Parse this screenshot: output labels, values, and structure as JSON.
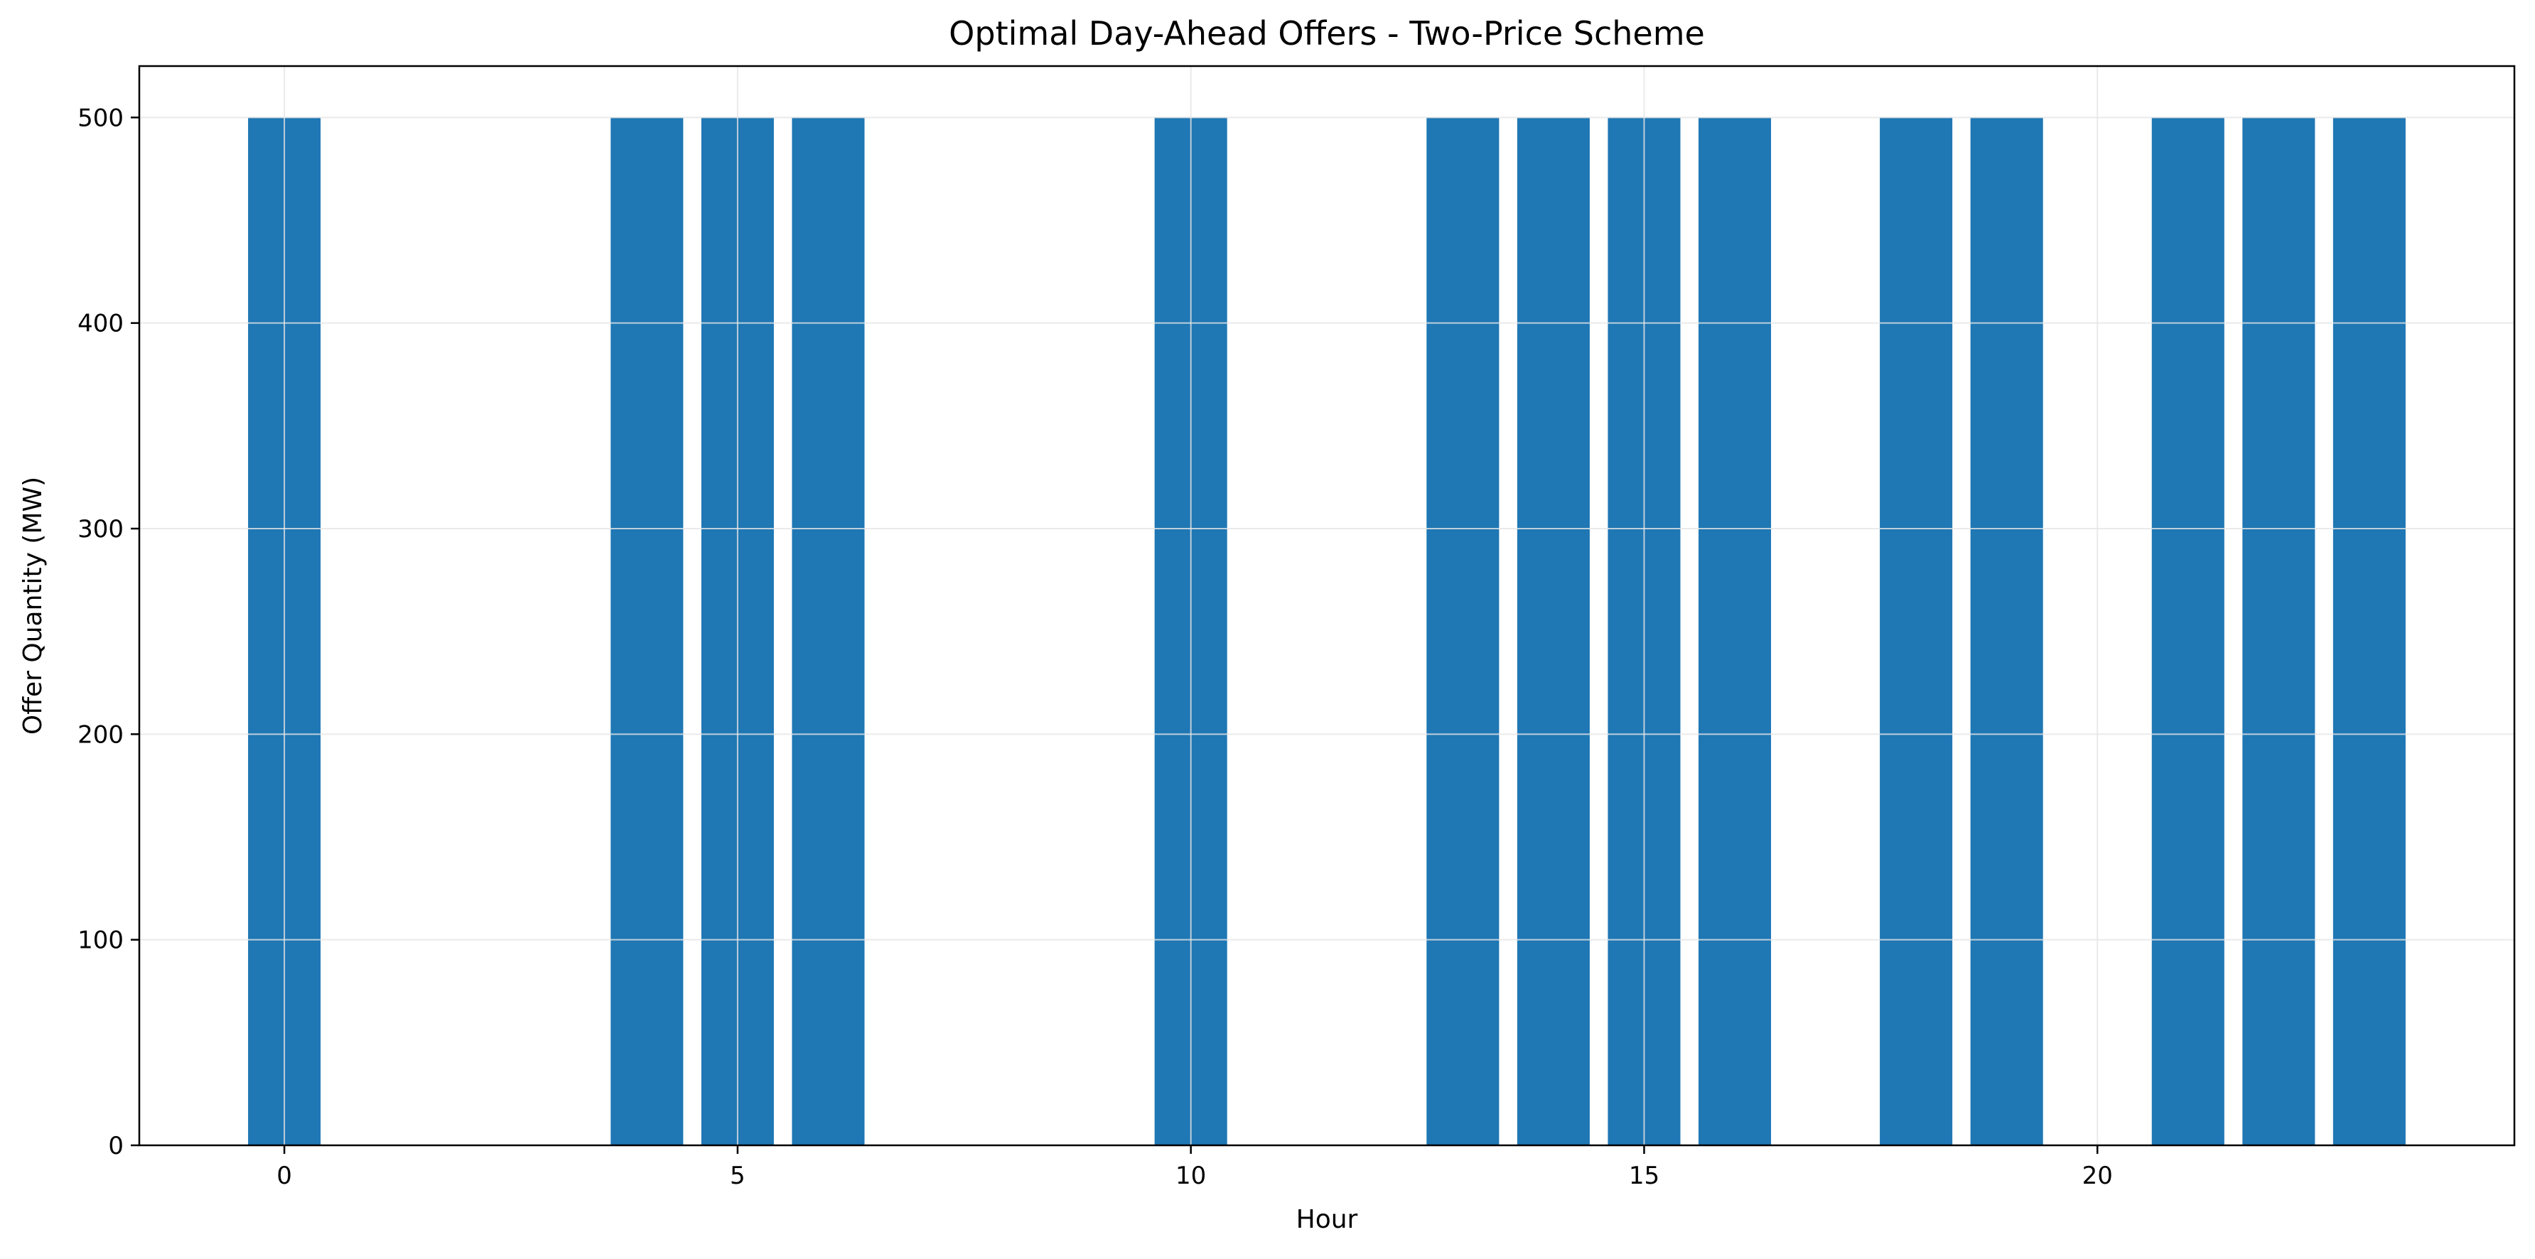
{
  "chart_data": {
    "type": "bar",
    "title": "Optimal Day-Ahead Offers - Two-Price Scheme",
    "xlabel": "Hour",
    "ylabel": "Offer Quantity (MW)",
    "x": [
      0,
      1,
      2,
      3,
      4,
      5,
      6,
      7,
      8,
      9,
      10,
      11,
      12,
      13,
      14,
      15,
      16,
      17,
      18,
      19,
      20,
      21,
      22,
      23
    ],
    "values": [
      500,
      0,
      0,
      0,
      500,
      500,
      500,
      0,
      0,
      0,
      500,
      0,
      0,
      500,
      500,
      500,
      500,
      0,
      500,
      500,
      0,
      500,
      500,
      500
    ],
    "xlim": [
      -1.6,
      24.6
    ],
    "ylim": [
      0,
      525
    ],
    "xticks": [
      0,
      5,
      10,
      15,
      20
    ],
    "yticks": [
      0,
      100,
      200,
      300,
      400,
      500
    ],
    "grid": true,
    "bar_color": "#1f77b4",
    "grid_color": "#e5e5e5"
  }
}
